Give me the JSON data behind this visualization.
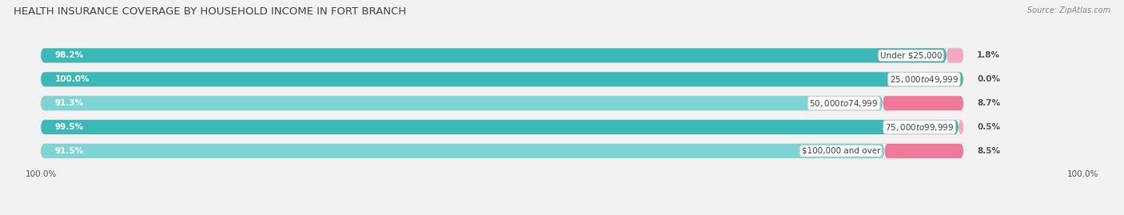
{
  "title": "HEALTH INSURANCE COVERAGE BY HOUSEHOLD INCOME IN FORT BRANCH",
  "source": "Source: ZipAtlas.com",
  "categories": [
    "Under $25,000",
    "$25,000 to $49,999",
    "$50,000 to $74,999",
    "$75,000 to $99,999",
    "$100,000 and over"
  ],
  "with_coverage": [
    98.2,
    100.0,
    91.3,
    99.5,
    91.5
  ],
  "without_coverage": [
    1.8,
    0.0,
    8.7,
    0.5,
    8.5
  ],
  "color_with_dark": "#3BB8B8",
  "color_with_light": "#7DD4D4",
  "color_without_dark": "#F07898",
  "color_without_light": "#F5A8C0",
  "bar_colors_with": [
    "dark",
    "dark",
    "light",
    "dark",
    "light"
  ],
  "bar_colors_without": [
    "light",
    "light",
    "dark",
    "light",
    "dark"
  ],
  "bg_color": "#F2F2F2",
  "title_fontsize": 9.5,
  "source_fontsize": 7,
  "label_fontsize": 7.5,
  "cat_label_fontsize": 7.5,
  "tick_label": "100.0%"
}
